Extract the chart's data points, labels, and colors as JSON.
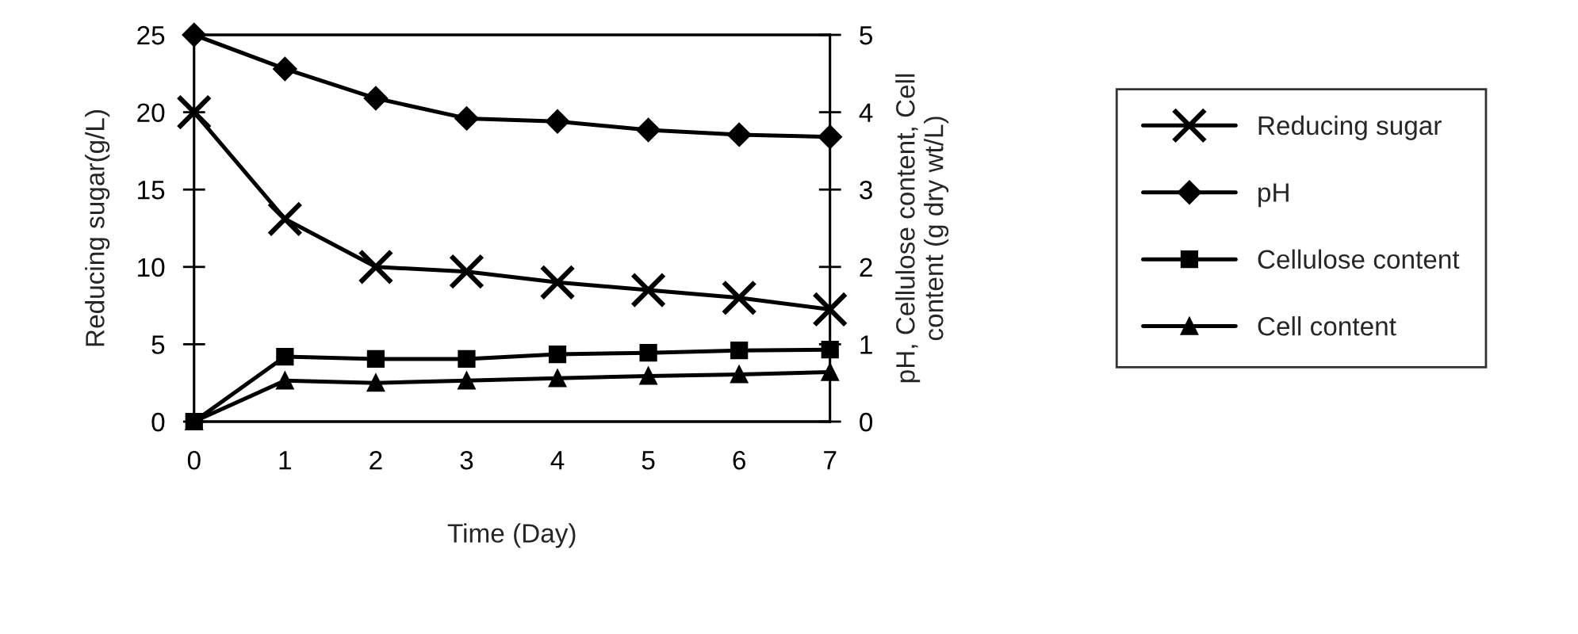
{
  "chart_data": {
    "type": "line",
    "xlabel": "Time (Day)",
    "ylabel": "Reducing sugar(g/L)",
    "y2label": "pH, Cellulose content, Cell\ncontent (g dry wt/L)",
    "x": [
      0,
      1,
      2,
      3,
      4,
      5,
      6,
      7
    ],
    "xlim": [
      0,
      7
    ],
    "xticks": [
      0,
      1,
      2,
      3,
      4,
      5,
      6,
      7
    ],
    "ylim": [
      0,
      25
    ],
    "yticks": [
      0,
      5,
      10,
      15,
      20,
      25
    ],
    "y2lim": [
      0,
      5
    ],
    "y2ticks": [
      0,
      1,
      2,
      3,
      4,
      5
    ],
    "grid": false,
    "legend": "right",
    "series": [
      {
        "name": "Reducing sugar",
        "color": "#000000",
        "marker": "cross",
        "values": [
          20,
          13.1,
          10.0,
          9.7,
          9.0,
          8.5,
          8.0,
          7.25
        ]
      },
      {
        "name": "pH",
        "color": "#000000",
        "marker": "diamond",
        "axis": "y2",
        "values": [
          5.0,
          4.56,
          4.18,
          3.92,
          3.88,
          3.77,
          3.71,
          3.68
        ]
      },
      {
        "name": "Cellulose content",
        "color": "#000000",
        "marker": "square",
        "axis": "y2",
        "values": [
          0,
          0.84,
          0.81,
          0.81,
          0.87,
          0.89,
          0.92,
          0.93
        ]
      },
      {
        "name": "Cell content",
        "color": "#000000",
        "marker": "triangle",
        "axis": "y2",
        "values": [
          0,
          0.53,
          0.5,
          0.53,
          0.56,
          0.59,
          0.61,
          0.64
        ]
      }
    ]
  }
}
